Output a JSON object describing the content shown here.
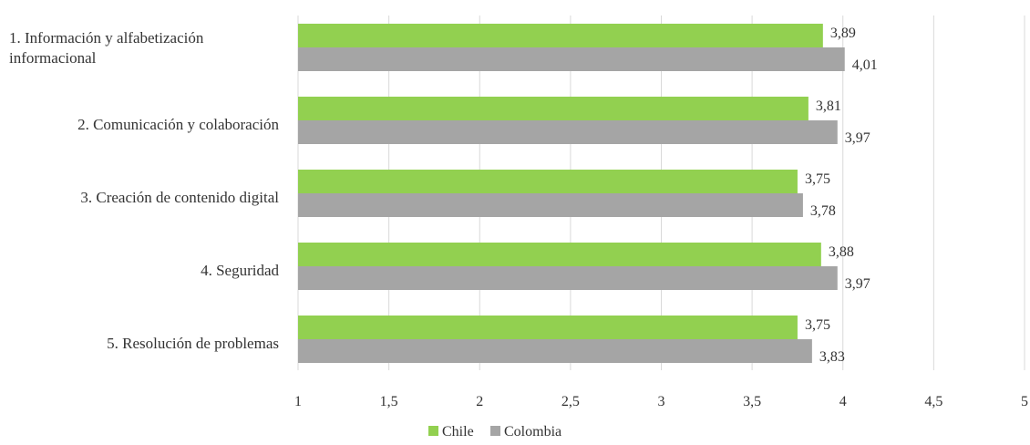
{
  "chart_data": {
    "type": "bar",
    "orientation": "horizontal",
    "categories": [
      [
        "1. Información y alfabetización",
        "informacional"
      ],
      [
        "2. Comunicación y colaboración"
      ],
      [
        "3. Creación de contenido digital"
      ],
      [
        "4. Seguridad"
      ],
      [
        "5. Resolución de problemas"
      ]
    ],
    "series": [
      {
        "name": "Chile",
        "color": "#92d050",
        "values": [
          3.89,
          3.81,
          3.75,
          3.88,
          3.75
        ],
        "labels": [
          "3,89",
          "3,81",
          "3,75",
          "3,88",
          "3,75"
        ]
      },
      {
        "name": "Colombia",
        "color": "#a5a5a5",
        "values": [
          4.01,
          3.97,
          3.78,
          3.97,
          3.83
        ],
        "labels": [
          "4,01",
          "3,97",
          "3,78",
          "3,97",
          "3,83"
        ]
      }
    ],
    "xlim": [
      1,
      5
    ],
    "ticks": [
      1,
      1.5,
      2,
      2.5,
      3,
      3.5,
      4,
      4.5,
      5
    ],
    "tick_labels": [
      "1",
      "1,5",
      "2",
      "2,5",
      "3",
      "3,5",
      "4",
      "4,5",
      "5"
    ],
    "grid": true,
    "legend_position": "bottom",
    "title": "",
    "xlabel": "",
    "ylabel": ""
  }
}
